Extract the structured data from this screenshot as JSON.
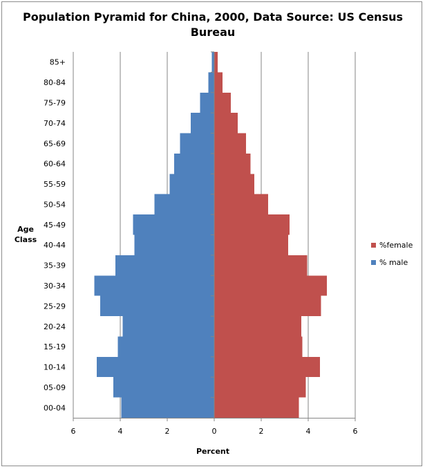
{
  "chart_data": {
    "type": "bar",
    "orientation": "horizontal-diverging",
    "title_lines": [
      "Population Pyramid for China, 2000, Data Source: US Census",
      "Bureau"
    ],
    "xlabel": "Percent",
    "ylabel_lines": [
      "Age",
      "Class"
    ],
    "xlim": [
      -6,
      6
    ],
    "x_ticks": [
      -6,
      -4,
      -2,
      0,
      2,
      4,
      6
    ],
    "x_tick_labels": [
      "6",
      "4",
      "2",
      "0",
      "2",
      "4",
      "6"
    ],
    "categories": [
      "00-04",
      "05-09",
      "10-14",
      "15-19",
      "20-24",
      "25-29",
      "30-34",
      "35-39",
      "40-44",
      "45-49",
      "50-54",
      "55-59",
      "60-64",
      "65-69",
      "70-74",
      "75-79",
      "80-84",
      "85+"
    ],
    "series": [
      {
        "name": "%female",
        "color": "#C0504D",
        "side": "right",
        "values": [
          3.6,
          3.9,
          4.5,
          3.75,
          3.7,
          4.55,
          4.8,
          3.95,
          3.15,
          3.2,
          2.3,
          1.7,
          1.55,
          1.35,
          1.0,
          0.7,
          0.35,
          0.15
        ]
      },
      {
        "name": "% male",
        "color": "#4F81BD",
        "side": "left",
        "values": [
          3.95,
          4.3,
          5.0,
          4.1,
          3.9,
          4.85,
          5.1,
          4.2,
          3.4,
          3.45,
          2.55,
          1.9,
          1.7,
          1.45,
          1.0,
          0.6,
          0.25,
          0.1
        ]
      }
    ],
    "legend_position": "right",
    "grid": "vertical"
  }
}
